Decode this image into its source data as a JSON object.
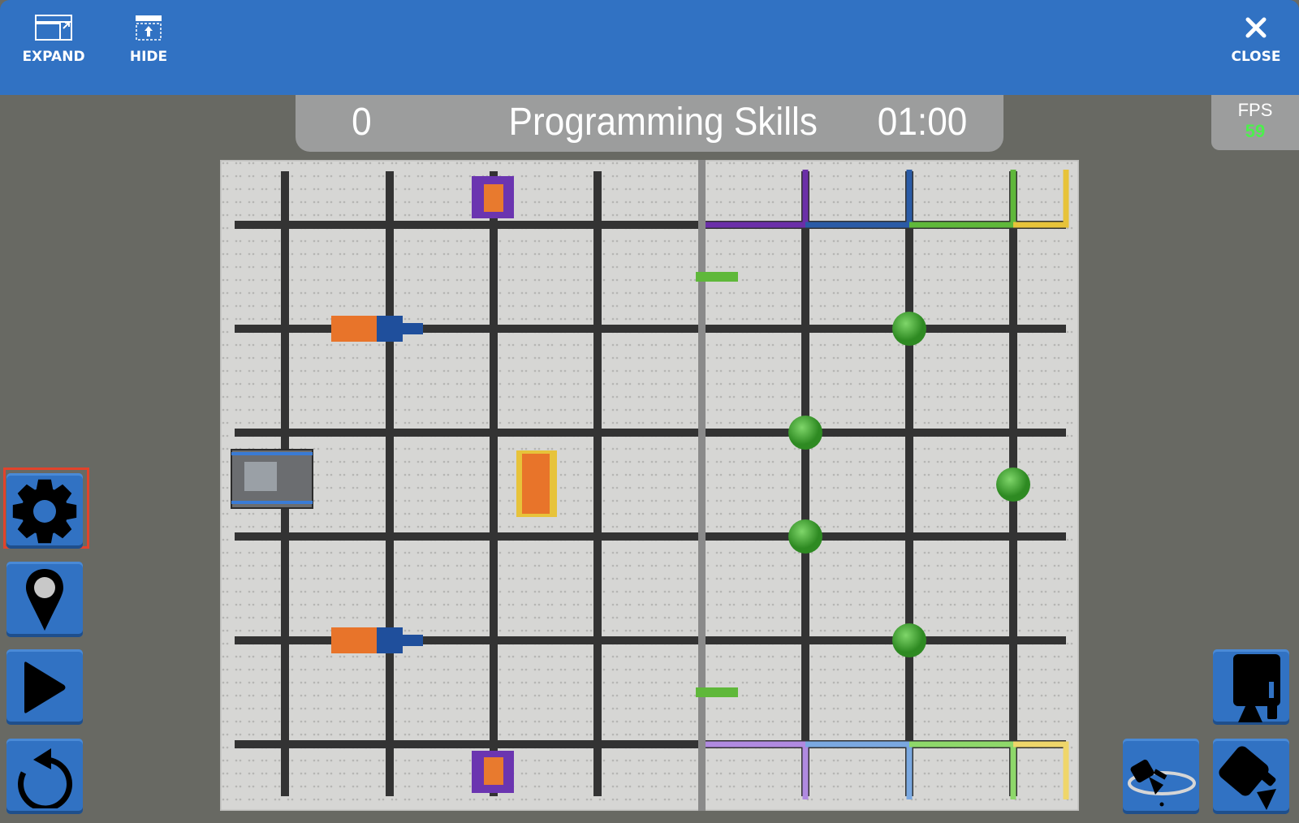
{
  "toolbar": {
    "expand_label": "EXPAND",
    "hide_label": "HIDE",
    "close_label": "CLOSE"
  },
  "scoreboard": {
    "score": "0",
    "mode": "Programming Skills",
    "timer": "01:00"
  },
  "fps": {
    "label": "FPS",
    "value": "59"
  },
  "side_buttons": [
    {
      "icon": "gear-icon",
      "selected": true
    },
    {
      "icon": "map-pin-icon"
    },
    {
      "icon": "play-icon"
    },
    {
      "icon": "reset-icon"
    }
  ],
  "camera_buttons": [
    {
      "icon": "top-camera-icon"
    },
    {
      "icon": "orbit-camera-icon"
    },
    {
      "icon": "angled-camera-icon"
    }
  ],
  "colors": {
    "accent": "#3172c3",
    "selected_outline": "#e2432b",
    "fps_value": "#4cf04c",
    "ball": "#3d9a2c"
  }
}
